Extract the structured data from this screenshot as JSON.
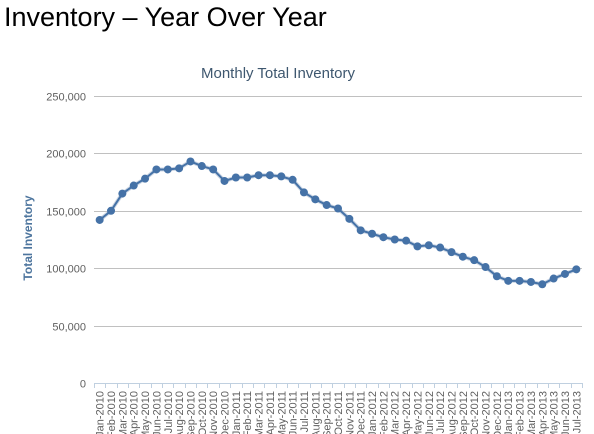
{
  "page": {
    "title": "Inventory – Year Over Year"
  },
  "chart_data": {
    "type": "line",
    "title": "Monthly Total Inventory",
    "xlabel": "",
    "ylabel": "Total Inventory",
    "ylim": [
      0,
      250000
    ],
    "yticks": [
      0,
      50000,
      100000,
      150000,
      200000,
      250000
    ],
    "ytick_labels": [
      "0",
      "50,000",
      "100,000",
      "150,000",
      "200,000",
      "250,000"
    ],
    "grid": true,
    "legend": "none",
    "categories": [
      "Jan-2010",
      "Feb-2010",
      "Mar-2010",
      "Apr-2010",
      "May-2010",
      "Jun-2010",
      "Jul-2010",
      "Aug-2010",
      "Sep-2010",
      "Oct-2010",
      "Nov-2010",
      "Dec-2010",
      "Jan-2011",
      "Feb-2011",
      "Mar-2011",
      "Apr-2011",
      "May-2011",
      "Jun-2011",
      "Jul-2011",
      "Aug-2011",
      "Sep-2011",
      "Oct-2011",
      "Nov-2011",
      "Dec-2011",
      "Jan-2012",
      "Feb-2012",
      "Mar-2012",
      "Apr-2012",
      "May-2012",
      "Jun-2012",
      "Jul-2012",
      "Aug-2012",
      "Sep-2012",
      "Oct-2012",
      "Nov-2012",
      "Dec-2012",
      "Jan-2013",
      "Feb-2013",
      "Mar-2013",
      "Apr-2013",
      "May-2013",
      "Jun-2013",
      "Jul-2013"
    ],
    "series": [
      {
        "color": "#4572a7",
        "values": [
          142000,
          150000,
          165000,
          172000,
          178000,
          186000,
          186000,
          187000,
          193000,
          189000,
          186000,
          176000,
          179000,
          179000,
          181000,
          181000,
          180000,
          177000,
          166000,
          160000,
          155000,
          152000,
          143000,
          133000,
          130000,
          127000,
          125000,
          124000,
          119000,
          120000,
          118000,
          114000,
          110000,
          107000,
          101000,
          93000,
          89000,
          89000,
          88000,
          86000,
          91000,
          95000,
          99000
        ]
      }
    ]
  }
}
